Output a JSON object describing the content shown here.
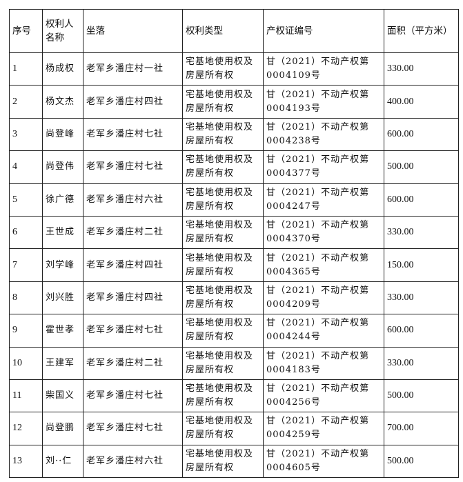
{
  "headers": {
    "index": "序号",
    "holder": "权利人名称",
    "location": "坐落",
    "right_type": "权利类型",
    "cert_no": "产权证编号",
    "area": "面积（平方米）"
  },
  "rows": [
    {
      "index": "1",
      "holder": "杨成权",
      "location": "老军乡潘庄村一社",
      "right_type": "宅基地使用权及房屋所有权",
      "cert_no": "甘（2021）不动产权第0004109号",
      "area": "330.00"
    },
    {
      "index": "2",
      "holder": "杨文杰",
      "location": "老军乡潘庄村四社",
      "right_type": "宅基地使用权及房屋所有权",
      "cert_no": "甘（2021）不动产权第0004193号",
      "area": "400.00"
    },
    {
      "index": "3",
      "holder": "尚登峰",
      "location": "老军乡潘庄村七社",
      "right_type": "宅基地使用权及房屋所有权",
      "cert_no": "甘（2021）不动产权第0004238号",
      "area": "600.00"
    },
    {
      "index": "4",
      "holder": "尚登伟",
      "location": "老军乡潘庄村七社",
      "right_type": "宅基地使用权及房屋所有权",
      "cert_no": "甘（2021）不动产权第0004377号",
      "area": "500.00"
    },
    {
      "index": "5",
      "holder": "徐广德",
      "location": "老军乡潘庄村六社",
      "right_type": "宅基地使用权及房屋所有权",
      "cert_no": "甘（2021）不动产权第0004247号",
      "area": "600.00"
    },
    {
      "index": "6",
      "holder": "王世成",
      "location": "老军乡潘庄村二社",
      "right_type": "宅基地使用权及房屋所有权",
      "cert_no": "甘（2021）不动产权第0004370号",
      "area": "330.00"
    },
    {
      "index": "7",
      "holder": "刘学峰",
      "location": "老军乡潘庄村四社",
      "right_type": "宅基地使用权及房屋所有权",
      "cert_no": "甘（2021）不动产权第0004365号",
      "area": "150.00"
    },
    {
      "index": "8",
      "holder": "刘兴胜",
      "location": "老军乡潘庄村四社",
      "right_type": "宅基地使用权及房屋所有权",
      "cert_no": "甘（2021）不动产权第0004209号",
      "area": "330.00"
    },
    {
      "index": "9",
      "holder": "霍世孝",
      "location": "老军乡潘庄村七社",
      "right_type": "宅基地使用权及房屋所有权",
      "cert_no": "甘（2021）不动产权第0004244号",
      "area": "600.00"
    },
    {
      "index": "10",
      "holder": "王建军",
      "location": "老军乡潘庄村二社",
      "right_type": "宅基地使用权及房屋所有权",
      "cert_no": "甘（2021）不动产权第0004183号",
      "area": "330.00"
    },
    {
      "index": "11",
      "holder": "柴国义",
      "location": "老军乡潘庄村七社",
      "right_type": "宅基地使用权及房屋所有权",
      "cert_no": "甘（2021）不动产权第0004256号",
      "area": "500.00"
    },
    {
      "index": "12",
      "holder": "尚登鹏",
      "location": "老军乡潘庄村七社",
      "right_type": "宅基地使用权及房屋所有权",
      "cert_no": "甘（2021）不动产权第0004259号",
      "area": "700.00"
    },
    {
      "index": "13",
      "holder": "刘··仁",
      "location": "老军乡潘庄村六社",
      "right_type": "宅基地使用权及房屋所有权",
      "cert_no": "甘（2021）不动产权第0004605号",
      "area": "500.00"
    }
  ]
}
